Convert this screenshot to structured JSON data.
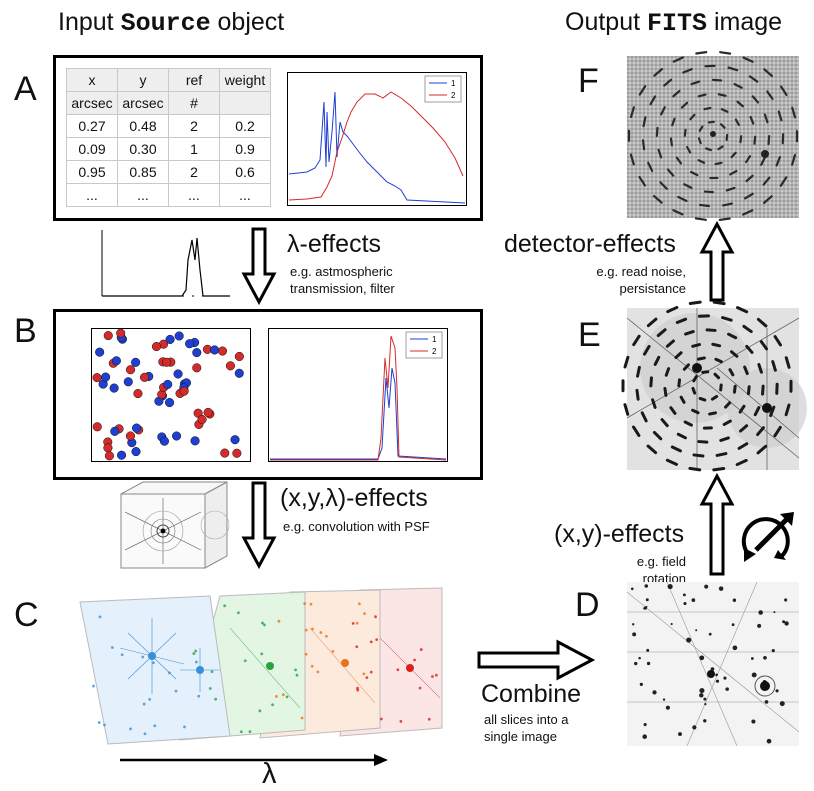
{
  "headings": {
    "input_prefix": "Input ",
    "input_code": "Source",
    "input_suffix": " object",
    "output_prefix": "Output ",
    "output_code": "FITS",
    "output_suffix": " image"
  },
  "panels": {
    "a": "A",
    "b": "B",
    "c": "C",
    "d": "D",
    "e": "E",
    "f": "F"
  },
  "source_table": {
    "headers": [
      "x",
      "y",
      "ref",
      "weight"
    ],
    "units": [
      "arcsec",
      "arcsec",
      "#",
      ""
    ],
    "rows": [
      [
        "0.27",
        "0.48",
        "2",
        "0.2"
      ],
      [
        "0.09",
        "0.30",
        "1",
        "0.9"
      ],
      [
        "0.95",
        "0.85",
        "2",
        "0.6"
      ],
      [
        "...",
        "...",
        "...",
        "..."
      ]
    ]
  },
  "legend": {
    "series_1": "1",
    "series_2": "2"
  },
  "effects": {
    "lambda": {
      "title": "λ-effects",
      "line1": "e.g. astmospheric",
      "line2": "transmission, filter"
    },
    "xyl": {
      "title": "(x,y,λ)-effects",
      "line1": "e.g. convolution with PSF"
    },
    "xy": {
      "title": "(x,y)-effects",
      "line1": "e.g. field rotation"
    },
    "detector": {
      "title": "detector-effects",
      "line1": "e.g. read noise,",
      "line2": "persistance"
    }
  },
  "combine": {
    "title": "Combine",
    "line1": "all slices into a",
    "line2": "single image"
  },
  "axis": {
    "lambda_label": "λ"
  },
  "colors": {
    "blue": "#1f3fd0",
    "red": "#d42a2a",
    "slice_blue": "#3b8fd6",
    "slice_green": "#2aa33a",
    "slice_orange": "#e8731c",
    "slice_red": "#d92020"
  }
}
